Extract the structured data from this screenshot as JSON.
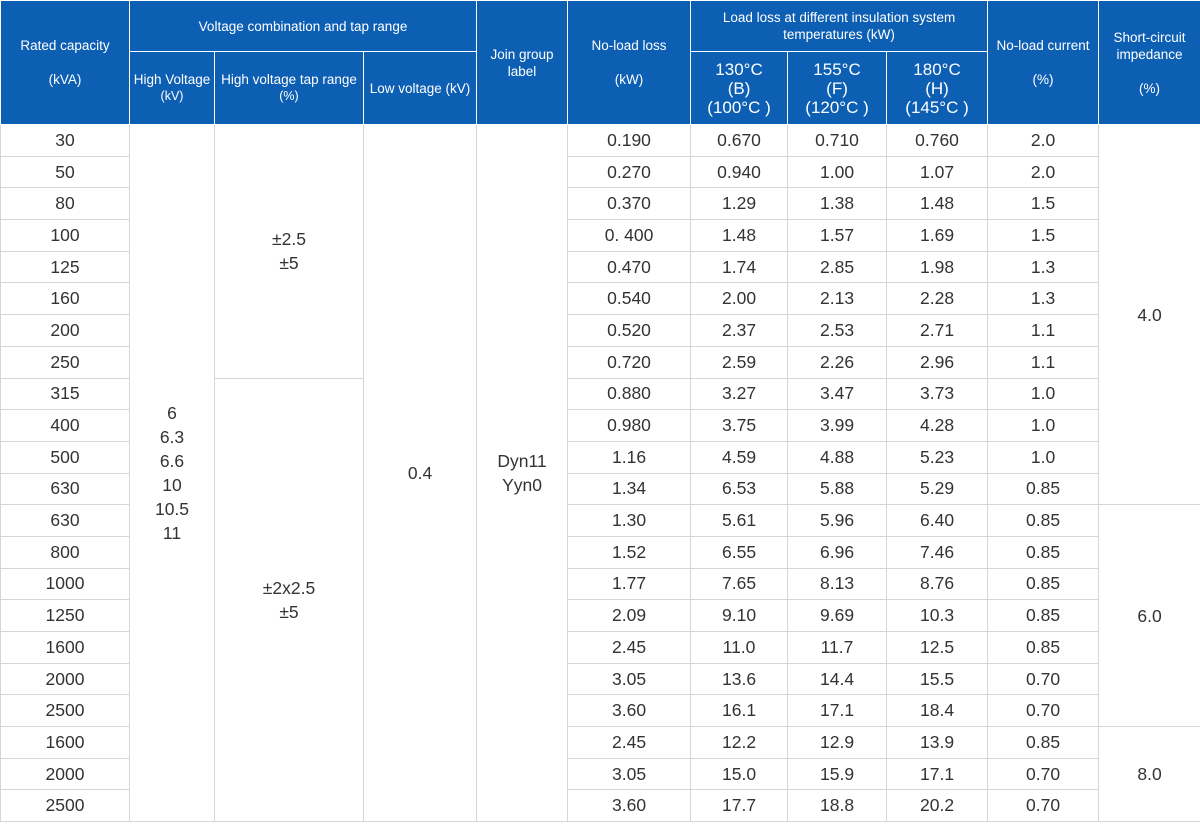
{
  "header": {
    "rated_capacity": {
      "title": "Rated capacity",
      "unit": "(kVA)"
    },
    "voltage_group": "Voltage combination and tap range",
    "high_voltage": {
      "title": "High Voltage",
      "unit": "(kV)"
    },
    "hv_tap_range": {
      "title": "High voltage tap range",
      "unit": "(%)"
    },
    "low_voltage": "Low voltage (kV)",
    "join_group": {
      "title": "Join group",
      "unit": "label"
    },
    "no_load_loss": {
      "title": "No-load loss",
      "unit": "(kW)"
    },
    "load_loss_group": "Load loss at different insulation system temperatures (kW)",
    "temp_b": {
      "temp": "130°C",
      "class": "(B)",
      "ref": "(100°C )"
    },
    "temp_f": {
      "temp": "155°C",
      "class": "(F)",
      "ref": "(120°C )"
    },
    "temp_h": {
      "temp": "180°C",
      "class": "(H)",
      "ref": "(145°C )"
    },
    "no_load_current": {
      "title": "No-load current",
      "unit": "(%)"
    },
    "impedance": {
      "title": "Short-circuit impedance",
      "unit": "(%)"
    }
  },
  "merged": {
    "high_voltage_values": [
      "6",
      "6.3",
      "6.6",
      "10",
      "10.5",
      "11"
    ],
    "tap_range_1": [
      "±2.5",
      "±5"
    ],
    "tap_range_2": [
      "±2x2.5",
      "±5"
    ],
    "low_voltage_value": "0.4",
    "join_group_values": [
      "Dyn11",
      "Yyn0"
    ],
    "impedance_values": [
      "4.0",
      "6.0",
      "8.0"
    ]
  },
  "rows": [
    {
      "capacity": "30",
      "no_load_loss": "0.190",
      "loss_b": "0.670",
      "loss_f": "0.710",
      "loss_h": "0.760",
      "no_load_current": "2.0"
    },
    {
      "capacity": "50",
      "no_load_loss": "0.270",
      "loss_b": "0.940",
      "loss_f": "1.00",
      "loss_h": "1.07",
      "no_load_current": "2.0"
    },
    {
      "capacity": "80",
      "no_load_loss": "0.370",
      "loss_b": "1.29",
      "loss_f": "1.38",
      "loss_h": "1.48",
      "no_load_current": "1.5"
    },
    {
      "capacity": "100",
      "no_load_loss": "0. 400",
      "loss_b": "1.48",
      "loss_f": "1.57",
      "loss_h": "1.69",
      "no_load_current": "1.5"
    },
    {
      "capacity": "125",
      "no_load_loss": "0.470",
      "loss_b": "1.74",
      "loss_f": "2.85",
      "loss_h": "1.98",
      "no_load_current": "1.3"
    },
    {
      "capacity": "160",
      "no_load_loss": "0.540",
      "loss_b": "2.00",
      "loss_f": "2.13",
      "loss_h": "2.28",
      "no_load_current": "1.3"
    },
    {
      "capacity": "200",
      "no_load_loss": "0.520",
      "loss_b": "2.37",
      "loss_f": "2.53",
      "loss_h": "2.71",
      "no_load_current": "1.1"
    },
    {
      "capacity": "250",
      "no_load_loss": "0.720",
      "loss_b": "2.59",
      "loss_f": "2.26",
      "loss_h": "2.96",
      "no_load_current": "1.1"
    },
    {
      "capacity": "315",
      "no_load_loss": "0.880",
      "loss_b": "3.27",
      "loss_f": "3.47",
      "loss_h": "3.73",
      "no_load_current": "1.0"
    },
    {
      "capacity": "400",
      "no_load_loss": "0.980",
      "loss_b": "3.75",
      "loss_f": "3.99",
      "loss_h": "4.28",
      "no_load_current": "1.0"
    },
    {
      "capacity": "500",
      "no_load_loss": "1.16",
      "loss_b": "4.59",
      "loss_f": "4.88",
      "loss_h": "5.23",
      "no_load_current": "1.0"
    },
    {
      "capacity": "630",
      "no_load_loss": "1.34",
      "loss_b": "6.53",
      "loss_f": "5.88",
      "loss_h": "5.29",
      "no_load_current": "0.85"
    },
    {
      "capacity": "630",
      "no_load_loss": "1.30",
      "loss_b": "5.61",
      "loss_f": "5.96",
      "loss_h": "6.40",
      "no_load_current": "0.85"
    },
    {
      "capacity": "800",
      "no_load_loss": "1.52",
      "loss_b": "6.55",
      "loss_f": "6.96",
      "loss_h": "7.46",
      "no_load_current": "0.85"
    },
    {
      "capacity": "1000",
      "no_load_loss": "1.77",
      "loss_b": "7.65",
      "loss_f": "8.13",
      "loss_h": "8.76",
      "no_load_current": "0.85"
    },
    {
      "capacity": "1250",
      "no_load_loss": "2.09",
      "loss_b": "9.10",
      "loss_f": "9.69",
      "loss_h": "10.3",
      "no_load_current": "0.85"
    },
    {
      "capacity": "1600",
      "no_load_loss": "2.45",
      "loss_b": "11.0",
      "loss_f": "11.7",
      "loss_h": "12.5",
      "no_load_current": "0.85"
    },
    {
      "capacity": "2000",
      "no_load_loss": "3.05",
      "loss_b": "13.6",
      "loss_f": "14.4",
      "loss_h": "15.5",
      "no_load_current": "0.70"
    },
    {
      "capacity": "2500",
      "no_load_loss": "3.60",
      "loss_b": "16.1",
      "loss_f": "17.1",
      "loss_h": "18.4",
      "no_load_current": "0.70"
    },
    {
      "capacity": "1600",
      "no_load_loss": "2.45",
      "loss_b": "12.2",
      "loss_f": "12.9",
      "loss_h": "13.9",
      "no_load_current": "0.85"
    },
    {
      "capacity": "2000",
      "no_load_loss": "3.05",
      "loss_b": "15.0",
      "loss_f": "15.9",
      "loss_h": "17.1",
      "no_load_current": "0.70"
    },
    {
      "capacity": "2500",
      "no_load_loss": "3.60",
      "loss_b": "17.7",
      "loss_f": "18.8",
      "loss_h": "20.2",
      "no_load_current": "0.70"
    }
  ]
}
